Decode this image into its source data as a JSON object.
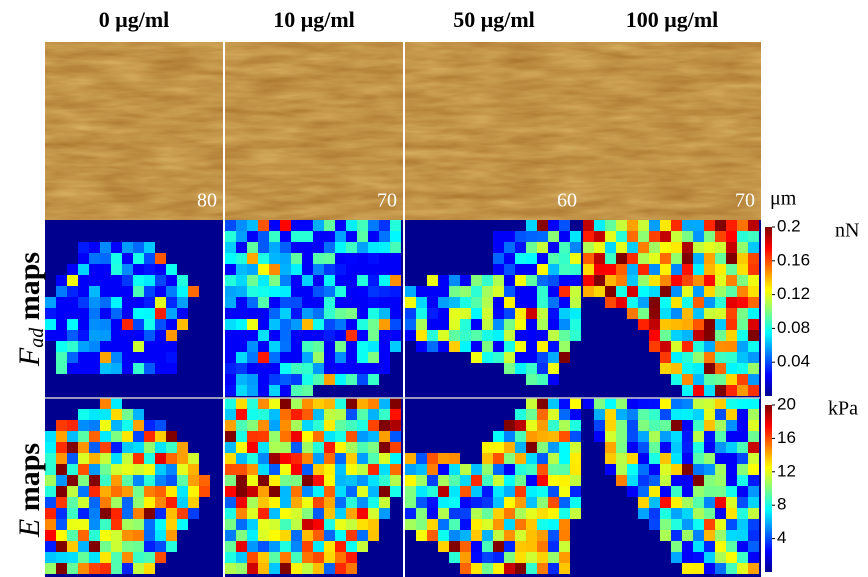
{
  "columns": [
    {
      "label": "0 μg/ml",
      "scale": 80
    },
    {
      "label": "10 μg/ml",
      "scale": 70
    },
    {
      "label": "50 μg/ml",
      "scale": 60
    },
    {
      "label": "100 μg/ml",
      "scale": 70
    }
  ],
  "scale_unit": "μm",
  "rows": [
    {
      "symbol": "F",
      "subscript": "ad",
      "text": " maps"
    },
    {
      "symbol": "E",
      "text": " maps"
    }
  ],
  "colorbars": [
    {
      "unit": "nN",
      "lim": [
        0,
        0.2
      ],
      "ticks": [
        0.2,
        0.16,
        0.12,
        0.08,
        0.04
      ]
    },
    {
      "unit": "kPa",
      "lim": [
        0,
        20
      ],
      "ticks": [
        20,
        16,
        12,
        8,
        4
      ]
    }
  ]
}
